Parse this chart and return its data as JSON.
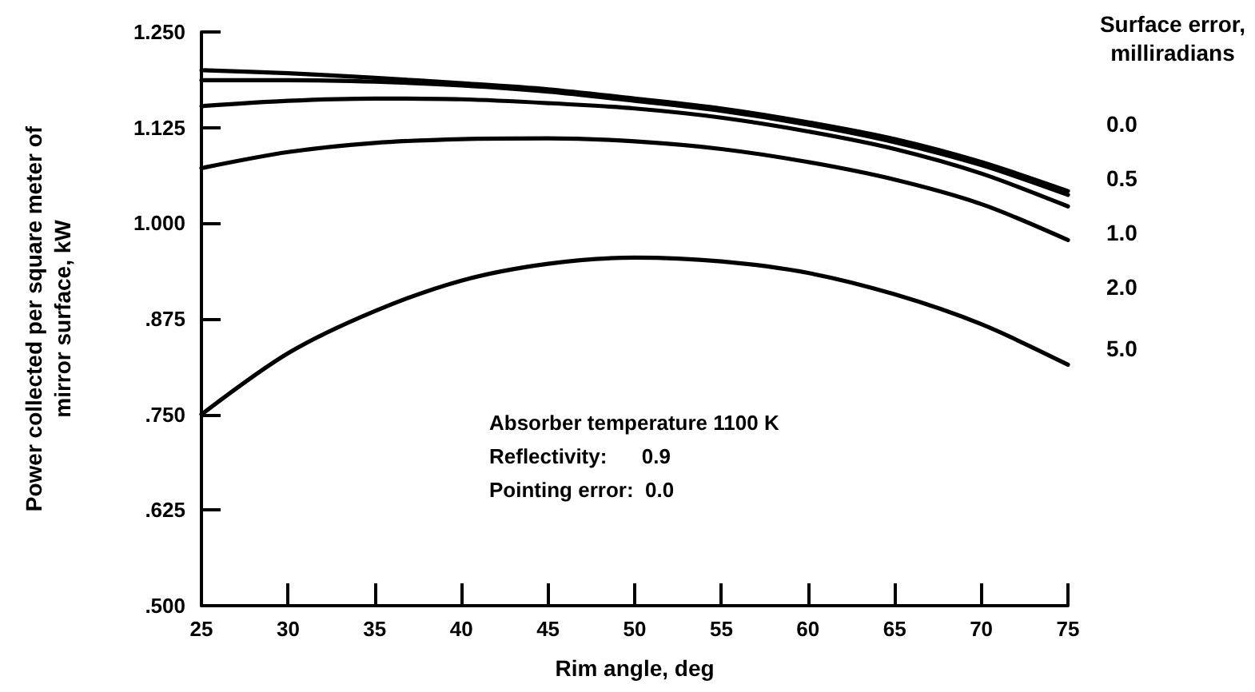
{
  "chart_data": {
    "type": "line",
    "xlabel": "Rim angle, deg",
    "ylabel": "Power collected per square meter of\nmirror surface, kW",
    "legend_title": "Surface error,\nmilliradians",
    "x": [
      25,
      30,
      35,
      40,
      45,
      50,
      55,
      60,
      65,
      70,
      75
    ],
    "series": [
      {
        "name": "0.0",
        "color": "#000000",
        "values": [
          1.2,
          1.196,
          1.19,
          1.183,
          1.175,
          1.163,
          1.15,
          1.132,
          1.11,
          1.08,
          1.042
        ]
      },
      {
        "name": "0.5",
        "color": "#000000",
        "values": [
          1.187,
          1.187,
          1.185,
          1.18,
          1.172,
          1.16,
          1.147,
          1.129,
          1.106,
          1.076,
          1.037
        ]
      },
      {
        "name": "1.0",
        "color": "#000000",
        "values": [
          1.153,
          1.16,
          1.163,
          1.162,
          1.157,
          1.15,
          1.138,
          1.12,
          1.097,
          1.065,
          1.022
        ]
      },
      {
        "name": "2.0",
        "color": "#000000",
        "values": [
          1.072,
          1.093,
          1.105,
          1.11,
          1.111,
          1.107,
          1.097,
          1.08,
          1.057,
          1.025,
          0.978
        ]
      },
      {
        "name": "5.0",
        "color": "#000000",
        "values": [
          0.75,
          0.83,
          0.885,
          0.925,
          0.947,
          0.955,
          0.95,
          0.935,
          0.907,
          0.868,
          0.815
        ]
      }
    ],
    "xlim": [
      25,
      75
    ],
    "xticks": [
      25,
      30,
      35,
      40,
      45,
      50,
      55,
      60,
      65,
      70,
      75
    ],
    "ylim": [
      0.5,
      1.25
    ],
    "yticks": [
      {
        "value": 0.5,
        "label": ".500"
      },
      {
        "value": 0.625,
        "label": ".625"
      },
      {
        "value": 0.75,
        "label": ".750"
      },
      {
        "value": 0.875,
        "label": ".875"
      },
      {
        "value": 1.0,
        "label": "1.000"
      },
      {
        "value": 1.125,
        "label": "1.125"
      },
      {
        "value": 1.25,
        "label": "1.250"
      }
    ],
    "annotations": [
      "Absorber temperature 1100 K",
      "Reflectivity:      0.9",
      "Pointing error:  0.0"
    ],
    "grid": false,
    "legend": false,
    "marker": "none",
    "line_style": "solid"
  }
}
